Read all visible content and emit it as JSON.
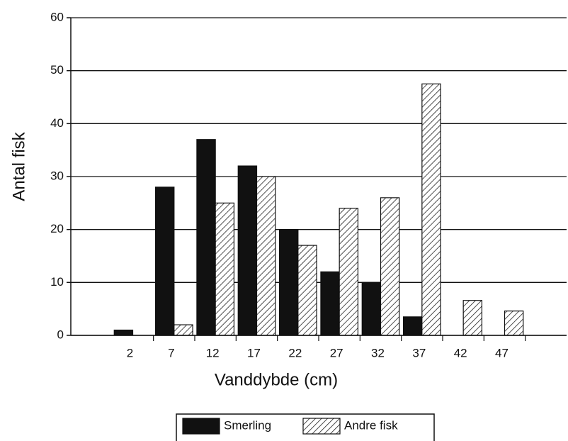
{
  "chart_data": {
    "type": "bar",
    "x_label": "Vanddybde (cm)",
    "y_label": "Antal fisk",
    "categories": [
      "2",
      "7",
      "12",
      "17",
      "22",
      "27",
      "32",
      "37",
      "42",
      "47"
    ],
    "series": [
      {
        "name": "Smerling",
        "color": "#111111",
        "hatch": false,
        "values": [
          1,
          28,
          37,
          32,
          20,
          12,
          10,
          3.5,
          0,
          0
        ]
      },
      {
        "name": "Andre fisk",
        "color": "#ffffff",
        "hatch": true,
        "values": [
          0,
          2,
          25,
          30,
          17,
          24,
          26,
          47.5,
          6.6,
          4.6
        ]
      }
    ],
    "ylim": [
      0,
      60
    ],
    "yticks": [
      0,
      10,
      20,
      30,
      40,
      50,
      60
    ],
    "grid": true,
    "legend": "bottom"
  }
}
